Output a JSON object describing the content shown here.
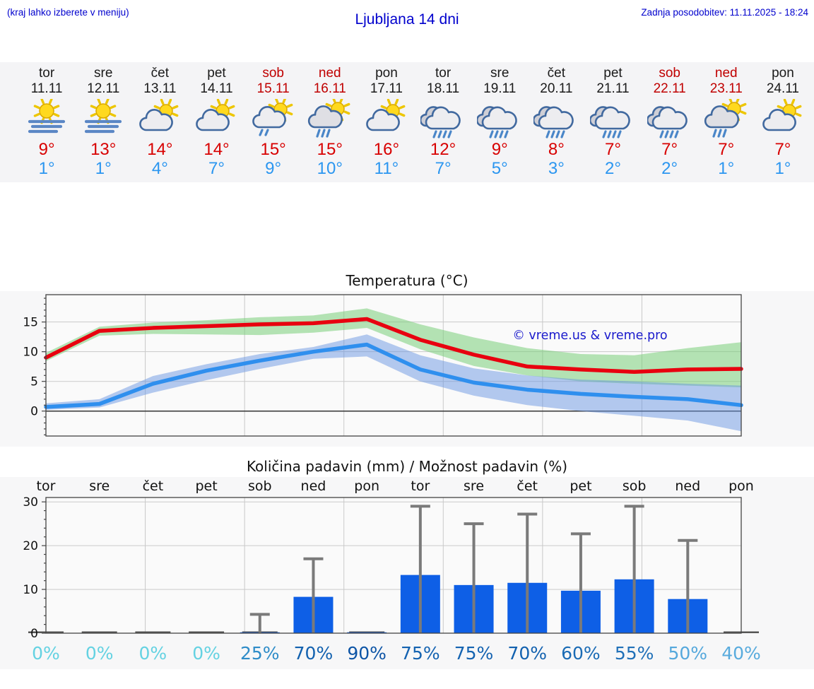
{
  "header": {
    "menu_hint": "(kraj lahko izberete v meniju)",
    "title": "Ljubljana 14 dni",
    "last_update": "Zadnja posodobitev: 11.11.2025 - 18:24"
  },
  "colors": {
    "header_blue": "#0000cd",
    "tmax_red": "#d80000",
    "tmin_blue": "#2b96f0",
    "weekend_red": "#c00000",
    "strip_bg": "#f4f4f6",
    "chart_bg": "#f7f7f8",
    "max_line": "#e8000f",
    "min_line": "#2f8fee",
    "max_band_green": "rgba(120,205,120,0.55)",
    "min_band_blue": "rgba(105,150,225,0.5)",
    "bar_blue": "#0e5fe6",
    "whisker_gray": "#7a7a7a"
  },
  "days": [
    {
      "name": "tor",
      "date": "11.11",
      "weekend": false,
      "icon": "fog-sun",
      "tmax": "9°",
      "tmin": "1°"
    },
    {
      "name": "sre",
      "date": "12.11",
      "weekend": false,
      "icon": "fog-sun",
      "tmax": "13°",
      "tmin": "1°"
    },
    {
      "name": "čet",
      "date": "13.11",
      "weekend": false,
      "icon": "partly-cloudy",
      "tmax": "14°",
      "tmin": "4°"
    },
    {
      "name": "pet",
      "date": "14.11",
      "weekend": false,
      "icon": "partly-cloudy",
      "tmax": "14°",
      "tmin": "7°"
    },
    {
      "name": "sob",
      "date": "15.11",
      "weekend": true,
      "icon": "sun-light-rain",
      "tmax": "15°",
      "tmin": "9°"
    },
    {
      "name": "ned",
      "date": "16.11",
      "weekend": true,
      "icon": "sun-rain",
      "tmax": "15°",
      "tmin": "10°"
    },
    {
      "name": "pon",
      "date": "17.11",
      "weekend": false,
      "icon": "partly-cloudy",
      "tmax": "16°",
      "tmin": "11°"
    },
    {
      "name": "tor",
      "date": "18.11",
      "weekend": false,
      "icon": "rain",
      "tmax": "12°",
      "tmin": "7°"
    },
    {
      "name": "sre",
      "date": "19.11",
      "weekend": false,
      "icon": "rain",
      "tmax": "9°",
      "tmin": "5°"
    },
    {
      "name": "čet",
      "date": "20.11",
      "weekend": false,
      "icon": "rain",
      "tmax": "8°",
      "tmin": "3°"
    },
    {
      "name": "pet",
      "date": "21.11",
      "weekend": false,
      "icon": "rain",
      "tmax": "7°",
      "tmin": "2°"
    },
    {
      "name": "sob",
      "date": "22.11",
      "weekend": true,
      "icon": "rain",
      "tmax": "7°",
      "tmin": "2°"
    },
    {
      "name": "ned",
      "date": "23.11",
      "weekend": true,
      "icon": "sun-rain",
      "tmax": "7°",
      "tmin": "1°"
    },
    {
      "name": "pon",
      "date": "24.11",
      "weekend": false,
      "icon": "partly-cloudy",
      "tmax": "7°",
      "tmin": "1°"
    }
  ],
  "chart_data": [
    {
      "type": "line",
      "title": "Temperatura (°C)",
      "categories": [
        "11.11",
        "12.11",
        "13.11",
        "14.11",
        "15.11",
        "16.11",
        "17.11",
        "18.11",
        "19.11",
        "20.11",
        "21.11",
        "22.11",
        "23.11",
        "24.11"
      ],
      "series": [
        {
          "name": "max temperature",
          "color": "#e8000f",
          "values": [
            9,
            13.5,
            14,
            14.3,
            14.6,
            14.8,
            15.5,
            12,
            9.5,
            7.5,
            7,
            6.6,
            7,
            7.1
          ]
        },
        {
          "name": "min temperature",
          "color": "#2f8fee",
          "values": [
            0.7,
            1.2,
            4.6,
            6.8,
            8.5,
            10,
            11.2,
            7,
            4.8,
            3.6,
            2.9,
            2.4,
            2,
            1
          ]
        },
        {
          "name": "max range upper",
          "values": [
            9.8,
            14.2,
            14.9,
            15.3,
            15.8,
            16.1,
            17.3,
            14.6,
            12.4,
            10.6,
            9.6,
            9.4,
            10.6,
            11.6
          ]
        },
        {
          "name": "max range lower",
          "values": [
            8.4,
            12.7,
            13.0,
            12.9,
            12.8,
            13.2,
            14.0,
            10.4,
            7.6,
            6.0,
            5.0,
            4.6,
            4.3,
            4.0
          ]
        },
        {
          "name": "min range upper",
          "values": [
            1.3,
            2.0,
            5.9,
            7.9,
            9.6,
            10.8,
            12.9,
            9.4,
            7.2,
            6.0,
            5.3,
            5.0,
            4.6,
            4.3
          ]
        },
        {
          "name": "min range lower",
          "values": [
            0.2,
            0.6,
            3.1,
            5.2,
            7.1,
            8.8,
            9.2,
            5.0,
            2.6,
            1.0,
            0.0,
            -0.8,
            -1.6,
            -3.4
          ]
        }
      ],
      "ylim": [
        -4.2,
        19.6
      ],
      "yticks": [
        0,
        5,
        10,
        15
      ],
      "grid": true,
      "watermark": "© vreme.us & vreme.pro"
    },
    {
      "type": "bar",
      "title": "Količina padavin (mm) / Možnost padavin (%)",
      "categories": [
        "tor",
        "sre",
        "čet",
        "pet",
        "sob",
        "ned",
        "pon",
        "tor",
        "sre",
        "čet",
        "pet",
        "sob",
        "ned",
        "pon"
      ],
      "values": [
        0,
        0,
        0,
        0,
        0.2,
        8.3,
        0.2,
        13.3,
        11,
        11.5,
        9.7,
        12.3,
        7.8,
        0
      ],
      "whisker_max": [
        0,
        0,
        0,
        0,
        4.3,
        17,
        0,
        29,
        25,
        27.2,
        22.7,
        29,
        21.2,
        0
      ],
      "probabilities": [
        "0%",
        "0%",
        "0%",
        "0%",
        "25%",
        "70%",
        "90%",
        "75%",
        "75%",
        "70%",
        "60%",
        "55%",
        "50%",
        "40%"
      ],
      "prob_colors": [
        "#64d2e2",
        "#64d2e2",
        "#64d2e2",
        "#64d2e2",
        "#2e8cc8",
        "#1261af",
        "#0e55a6",
        "#1463b1",
        "#1463b1",
        "#1261af",
        "#1a6bb5",
        "#2070b8",
        "#55a8dc",
        "#58abdd"
      ],
      "ylim": [
        0,
        31
      ],
      "yticks": [
        0,
        10,
        20,
        30
      ],
      "grid": true
    }
  ]
}
